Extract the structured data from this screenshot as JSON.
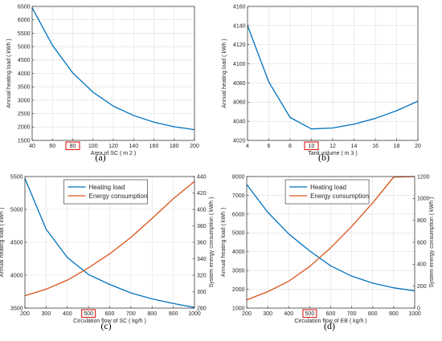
{
  "chart_data": [
    {
      "id": "a",
      "type": "line",
      "panel_label": "(a)",
      "xlabel": "Area of SC ( m 2 )",
      "ylabel": "Annual heating load ( kWh )",
      "xlim": [
        40,
        200
      ],
      "ylim": [
        1500,
        6500
      ],
      "xticks": [
        40,
        60,
        80,
        100,
        120,
        140,
        160,
        180,
        200
      ],
      "yticks": [
        1500,
        2000,
        2500,
        3000,
        3500,
        4000,
        4500,
        5000,
        5500,
        6000,
        6500
      ],
      "highlight_tick": 80,
      "grid": true,
      "series": [
        {
          "color": "#0072BD",
          "x": [
            40,
            60,
            80,
            100,
            120,
            140,
            160,
            180,
            200
          ],
          "y": [
            6450,
            5050,
            4020,
            3300,
            2780,
            2430,
            2180,
            2010,
            1900
          ]
        }
      ]
    },
    {
      "id": "b",
      "type": "line",
      "panel_label": "(b)",
      "xlabel": "Tank volume ( m 3 )",
      "ylabel": "Annual heating load ( kWh )",
      "xlim": [
        4,
        20
      ],
      "ylim": [
        4020,
        4160
      ],
      "xticks": [
        4,
        6,
        8,
        10,
        12,
        14,
        16,
        18,
        20
      ],
      "yticks": [
        4020,
        4040,
        4060,
        4080,
        4100,
        4120,
        4140,
        4160
      ],
      "highlight_tick": 10,
      "grid": true,
      "series": [
        {
          "color": "#0072BD",
          "x": [
            4,
            6,
            8,
            10,
            12,
            14,
            16,
            18,
            20
          ],
          "y": [
            4140,
            4081,
            4044,
            4032,
            4033,
            4037,
            4043,
            4051,
            4061
          ]
        }
      ]
    },
    {
      "id": "c",
      "type": "line",
      "panel_label": "(c)",
      "xlabel": "Circulation flow of SC ( kg/h )",
      "ylabel": "Annual heating load ( kWh )",
      "y2label": "System energy consumption ( kWh )",
      "xlim": [
        200,
        1000
      ],
      "ylim": [
        3500,
        5500
      ],
      "y2lim": [
        280,
        440
      ],
      "xticks": [
        200,
        300,
        400,
        500,
        600,
        700,
        800,
        900,
        1000
      ],
      "yticks": [
        3500,
        4000,
        4500,
        5000,
        5500
      ],
      "y2ticks": [
        280,
        300,
        320,
        340,
        360,
        380,
        400,
        420,
        440
      ],
      "highlight_tick": 500,
      "grid": true,
      "legend": "top-center",
      "series": [
        {
          "name": "Heating load",
          "axis": "left",
          "color": "#0072BD",
          "x": [
            200,
            300,
            400,
            500,
            600,
            700,
            800,
            900,
            1000
          ],
          "y": [
            5470,
            4700,
            4270,
            4010,
            3860,
            3730,
            3640,
            3570,
            3510
          ]
        },
        {
          "name": "Energy consumption",
          "axis": "right",
          "color": "#D95319",
          "x": [
            200,
            300,
            400,
            500,
            600,
            700,
            800,
            900,
            1000
          ],
          "y": [
            295,
            303,
            314,
            329,
            346,
            366,
            389,
            413,
            434
          ]
        }
      ]
    },
    {
      "id": "d",
      "type": "line",
      "panel_label": "(d)",
      "xlabel": "Circulation flow of EB ( kg/h )",
      "ylabel": "Annual heating load ( kWh )",
      "y2label": "System energy consumption ( kWh )",
      "xlim": [
        200,
        1000
      ],
      "ylim": [
        1000,
        8000
      ],
      "y2lim": [
        0,
        1200
      ],
      "xticks": [
        200,
        300,
        400,
        500,
        600,
        700,
        800,
        900,
        1000
      ],
      "yticks": [
        1000,
        2000,
        3000,
        4000,
        5000,
        6000,
        7000,
        8000
      ],
      "y2ticks": [
        0,
        200,
        400,
        600,
        800,
        1000,
        1200
      ],
      "highlight_tick": 500,
      "grid": true,
      "legend": "top-center",
      "series": [
        {
          "name": "Heating load",
          "axis": "left",
          "color": "#0072BD",
          "x": [
            200,
            300,
            400,
            500,
            600,
            700,
            800,
            900,
            1000
          ],
          "y": [
            7580,
            6100,
            4950,
            4040,
            3250,
            2700,
            2330,
            2080,
            1920
          ]
        },
        {
          "name": "Energy consumption",
          "axis": "right",
          "color": "#D95319",
          "x": [
            200,
            300,
            400,
            500,
            600,
            700,
            800,
            900,
            1000
          ],
          "y": [
            75,
            150,
            245,
            380,
            550,
            745,
            960,
            1195,
            1200
          ]
        }
      ]
    }
  ]
}
